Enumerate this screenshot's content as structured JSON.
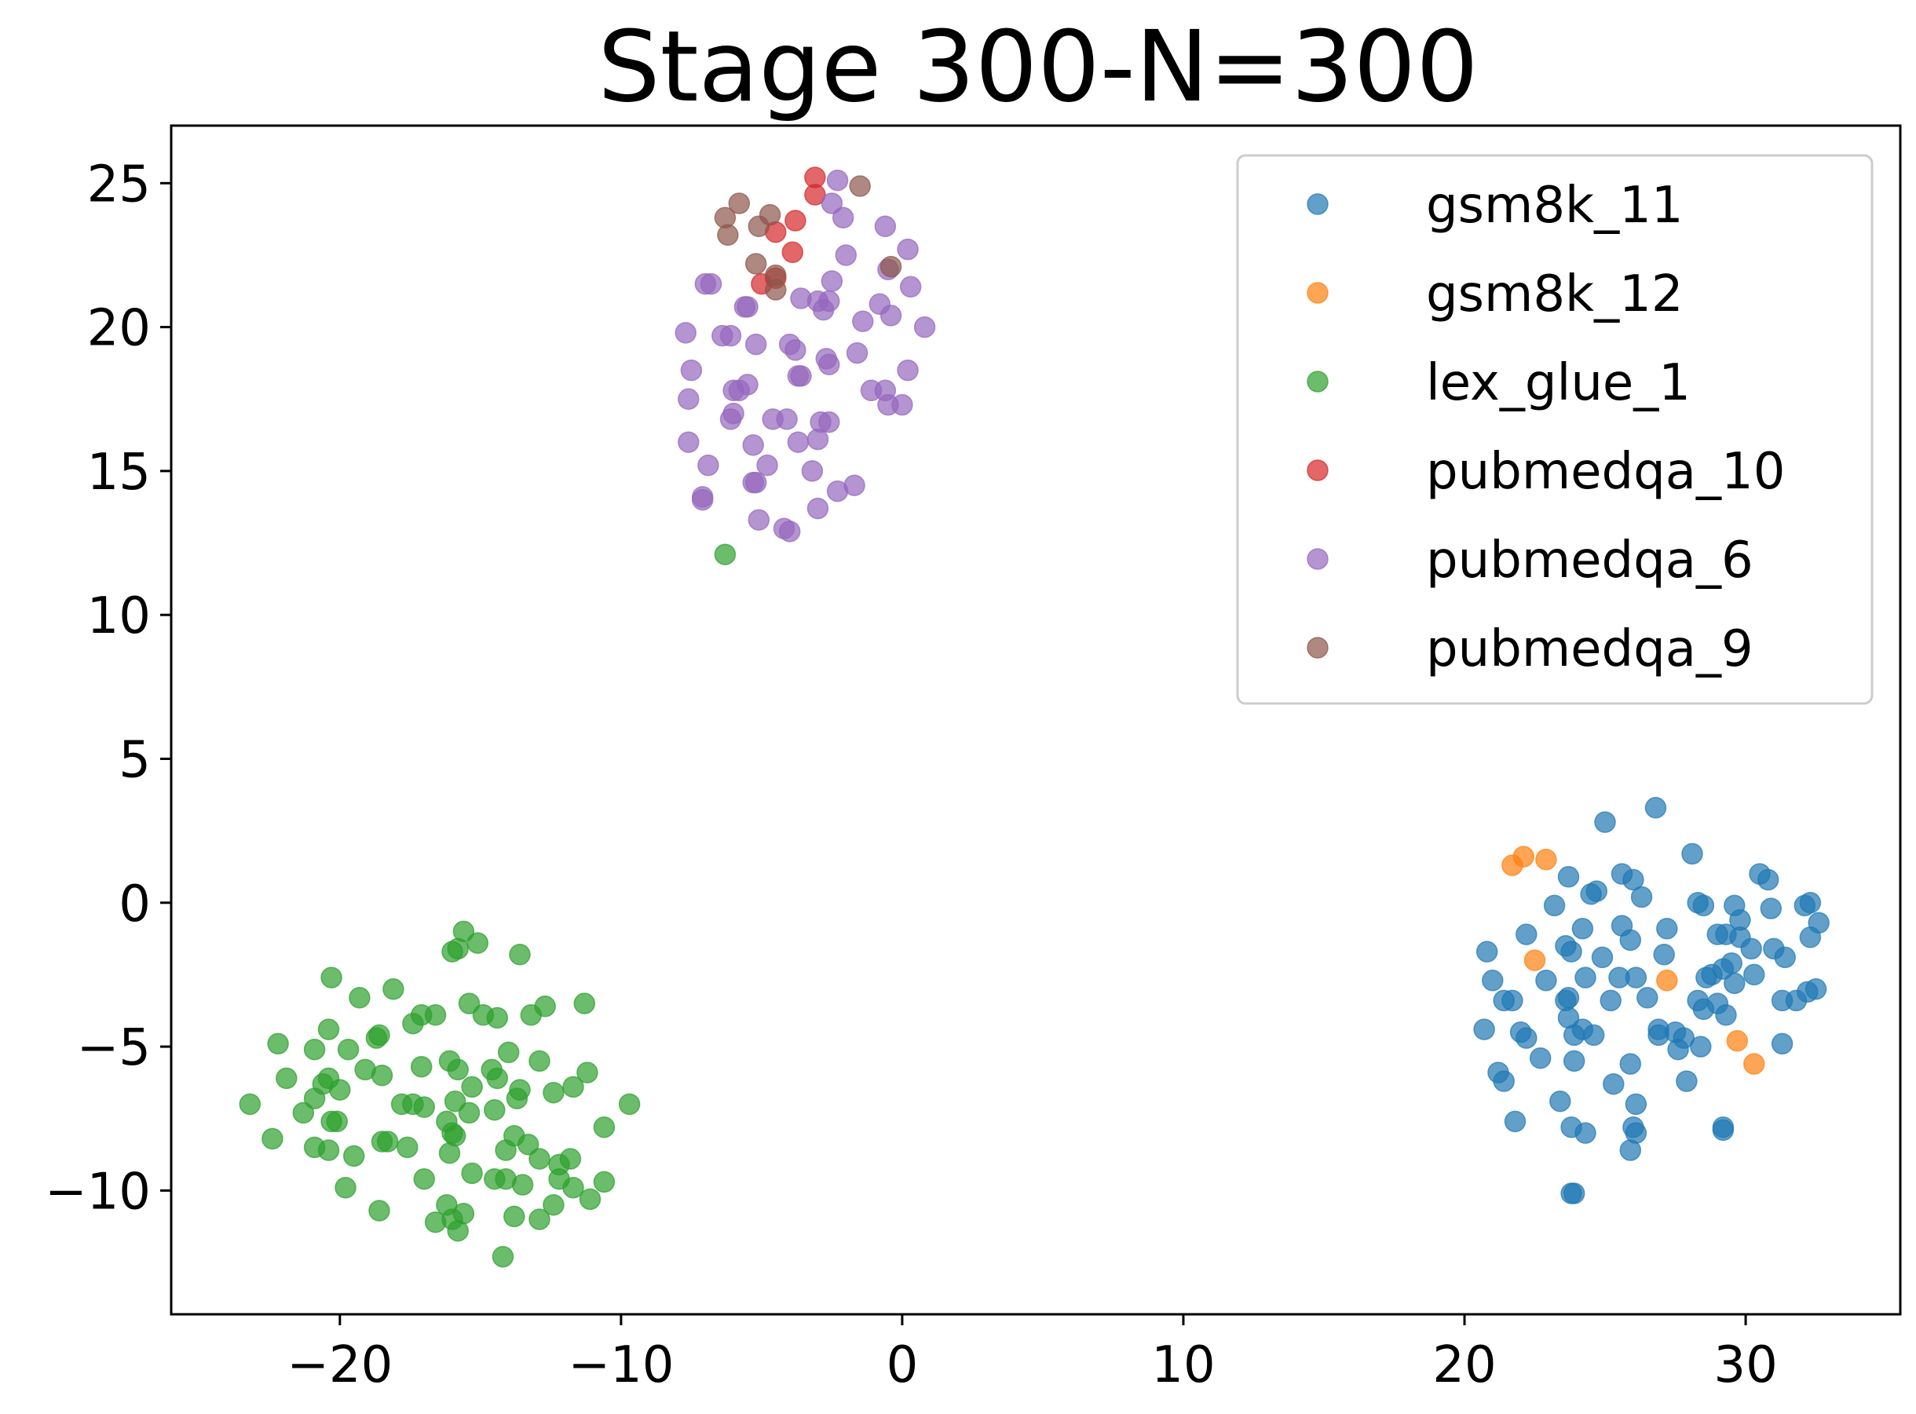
{
  "chart_data": {
    "type": "scatter",
    "title": "Stage 300-N=300",
    "xlabel": "",
    "ylabel": "",
    "xlim": [
      -26,
      35.5
    ],
    "ylim": [
      -14.3,
      27
    ],
    "xticks": [
      -20,
      -10,
      0,
      10,
      20,
      30
    ],
    "xtick_labels": [
      "−20",
      "−10",
      "0",
      "10",
      "20",
      "30"
    ],
    "yticks": [
      -10,
      -5,
      0,
      5,
      10,
      15,
      20,
      25
    ],
    "ytick_labels": [
      "−10",
      "−5",
      "0",
      "5",
      "10",
      "15",
      "20",
      "25"
    ],
    "grid": false,
    "legend_position": "top-right",
    "marker_alpha": 0.7,
    "series": [
      {
        "name": "gsm8k_11",
        "color": "#1f77b4",
        "points": [
          [
            26.8,
            3.3
          ],
          [
            25.0,
            2.8
          ],
          [
            28.1,
            1.7
          ],
          [
            25.6,
            1.0
          ],
          [
            26.0,
            0.8
          ],
          [
            24.5,
            0.3
          ],
          [
            24.7,
            0.4
          ],
          [
            26.3,
            0.2
          ],
          [
            23.7,
            0.9
          ],
          [
            23.2,
            -0.1
          ],
          [
            28.3,
            0.0
          ],
          [
            28.5,
            -0.1
          ],
          [
            30.5,
            1.0
          ],
          [
            30.8,
            0.8
          ],
          [
            29.6,
            -0.1
          ],
          [
            30.9,
            -0.2
          ],
          [
            32.1,
            -0.1
          ],
          [
            32.3,
            0.0
          ],
          [
            32.6,
            -0.7
          ],
          [
            29.8,
            -0.6
          ],
          [
            25.6,
            -0.8
          ],
          [
            27.2,
            -0.9
          ],
          [
            24.2,
            -0.9
          ],
          [
            22.2,
            -1.1
          ],
          [
            23.6,
            -1.5
          ],
          [
            29.0,
            -1.1
          ],
          [
            29.3,
            -1.1
          ],
          [
            29.8,
            -1.2
          ],
          [
            30.2,
            -1.6
          ],
          [
            31.0,
            -1.6
          ],
          [
            31.4,
            -1.9
          ],
          [
            32.3,
            -1.2
          ],
          [
            20.8,
            -1.7
          ],
          [
            27.1,
            -1.8
          ],
          [
            23.8,
            -1.7
          ],
          [
            24.9,
            -1.9
          ],
          [
            25.9,
            -1.3
          ],
          [
            29.5,
            -2.1
          ],
          [
            29.2,
            -2.3
          ],
          [
            28.8,
            -2.5
          ],
          [
            30.3,
            -2.5
          ],
          [
            28.6,
            -2.6
          ],
          [
            26.1,
            -2.6
          ],
          [
            25.5,
            -2.6
          ],
          [
            24.3,
            -2.6
          ],
          [
            22.9,
            -2.7
          ],
          [
            21.0,
            -2.7
          ],
          [
            21.4,
            -3.4
          ],
          [
            21.7,
            -3.4
          ],
          [
            23.6,
            -3.4
          ],
          [
            23.7,
            -3.3
          ],
          [
            25.2,
            -3.4
          ],
          [
            26.5,
            -3.3
          ],
          [
            28.3,
            -3.4
          ],
          [
            28.5,
            -3.7
          ],
          [
            29.0,
            -3.5
          ],
          [
            29.3,
            -3.9
          ],
          [
            29.6,
            -2.8
          ],
          [
            31.3,
            -3.4
          ],
          [
            31.8,
            -3.4
          ],
          [
            32.2,
            -3.1
          ],
          [
            32.5,
            -3.0
          ],
          [
            23.7,
            -4.0
          ],
          [
            24.2,
            -4.4
          ],
          [
            24.6,
            -4.6
          ],
          [
            23.9,
            -4.6
          ],
          [
            22.0,
            -4.5
          ],
          [
            22.2,
            -4.7
          ],
          [
            20.7,
            -4.4
          ],
          [
            26.9,
            -4.4
          ],
          [
            26.9,
            -4.6
          ],
          [
            27.5,
            -4.5
          ],
          [
            27.8,
            -4.7
          ],
          [
            28.4,
            -5.0
          ],
          [
            27.6,
            -5.1
          ],
          [
            31.3,
            -4.9
          ],
          [
            22.7,
            -5.4
          ],
          [
            23.9,
            -5.5
          ],
          [
            25.9,
            -5.6
          ],
          [
            21.2,
            -5.9
          ],
          [
            21.4,
            -6.2
          ],
          [
            25.3,
            -6.3
          ],
          [
            27.9,
            -6.2
          ],
          [
            23.4,
            -6.9
          ],
          [
            26.1,
            -7.0
          ],
          [
            21.8,
            -7.6
          ],
          [
            23.8,
            -7.8
          ],
          [
            24.3,
            -8.0
          ],
          [
            26.0,
            -7.8
          ],
          [
            26.1,
            -8.0
          ],
          [
            29.2,
            -7.8
          ],
          [
            29.2,
            -7.9
          ],
          [
            25.9,
            -8.6
          ],
          [
            23.8,
            -10.1
          ],
          [
            23.9,
            -10.1
          ]
        ]
      },
      {
        "name": "gsm8k_12",
        "color": "#ff7f0e",
        "points": [
          [
            21.7,
            1.3
          ],
          [
            22.1,
            1.6
          ],
          [
            22.9,
            1.5
          ],
          [
            22.5,
            -2.0
          ],
          [
            27.2,
            -2.7
          ],
          [
            29.7,
            -4.8
          ],
          [
            30.3,
            -5.6
          ]
        ]
      },
      {
        "name": "lex_glue_1",
        "color": "#2ca02c",
        "points": [
          [
            -6.3,
            12.1
          ],
          [
            -15.6,
            -1.0
          ],
          [
            -15.1,
            -1.4
          ],
          [
            -16.0,
            -1.7
          ],
          [
            -15.8,
            -1.6
          ],
          [
            -13.6,
            -1.8
          ],
          [
            -20.3,
            -2.6
          ],
          [
            -18.1,
            -3.0
          ],
          [
            -19.3,
            -3.3
          ],
          [
            -15.4,
            -3.5
          ],
          [
            -14.9,
            -3.9
          ],
          [
            -14.4,
            -4.0
          ],
          [
            -16.6,
            -3.9
          ],
          [
            -17.1,
            -3.9
          ],
          [
            -17.4,
            -4.2
          ],
          [
            -13.2,
            -3.9
          ],
          [
            -12.7,
            -3.6
          ],
          [
            -11.3,
            -3.5
          ],
          [
            -20.4,
            -4.4
          ],
          [
            -22.2,
            -4.9
          ],
          [
            -20.9,
            -5.1
          ],
          [
            -19.7,
            -5.1
          ],
          [
            -18.6,
            -4.6
          ],
          [
            -18.7,
            -4.7
          ],
          [
            -14.0,
            -5.2
          ],
          [
            -16.1,
            -5.5
          ],
          [
            -15.8,
            -5.8
          ],
          [
            -12.9,
            -5.5
          ],
          [
            -17.1,
            -5.7
          ],
          [
            -19.1,
            -5.8
          ],
          [
            -18.5,
            -6.0
          ],
          [
            -20.4,
            -6.1
          ],
          [
            -20.6,
            -6.3
          ],
          [
            -20.0,
            -6.5
          ],
          [
            -21.9,
            -6.1
          ],
          [
            -15.3,
            -6.4
          ],
          [
            -14.6,
            -5.8
          ],
          [
            -14.4,
            -6.1
          ],
          [
            -13.6,
            -6.5
          ],
          [
            -13.7,
            -6.8
          ],
          [
            -12.4,
            -6.6
          ],
          [
            -11.7,
            -6.4
          ],
          [
            -11.2,
            -5.9
          ],
          [
            -23.2,
            -7.0
          ],
          [
            -21.3,
            -7.3
          ],
          [
            -20.9,
            -6.8
          ],
          [
            -17.8,
            -7.0
          ],
          [
            -17.4,
            -7.0
          ],
          [
            -17.0,
            -7.1
          ],
          [
            -15.9,
            -6.9
          ],
          [
            -15.4,
            -7.3
          ],
          [
            -14.5,
            -7.2
          ],
          [
            -20.3,
            -7.6
          ],
          [
            -20.1,
            -7.6
          ],
          [
            -16.2,
            -7.6
          ],
          [
            -16.0,
            -8.0
          ],
          [
            -15.9,
            -8.1
          ],
          [
            -13.8,
            -8.1
          ],
          [
            -13.3,
            -8.4
          ],
          [
            -14.1,
            -8.6
          ],
          [
            -12.9,
            -8.9
          ],
          [
            -12.2,
            -9.1
          ],
          [
            -11.8,
            -8.9
          ],
          [
            -10.6,
            -7.8
          ],
          [
            -9.7,
            -7.0
          ],
          [
            -22.4,
            -8.2
          ],
          [
            -20.9,
            -8.5
          ],
          [
            -20.4,
            -8.6
          ],
          [
            -19.5,
            -8.8
          ],
          [
            -18.5,
            -8.3
          ],
          [
            -18.3,
            -8.3
          ],
          [
            -17.6,
            -8.5
          ],
          [
            -16.1,
            -8.7
          ],
          [
            -17.0,
            -9.6
          ],
          [
            -15.3,
            -9.4
          ],
          [
            -14.5,
            -9.6
          ],
          [
            -14.1,
            -9.6
          ],
          [
            -13.5,
            -9.8
          ],
          [
            -12.2,
            -9.6
          ],
          [
            -11.7,
            -9.9
          ],
          [
            -10.6,
            -9.7
          ],
          [
            -19.8,
            -9.9
          ],
          [
            -11.1,
            -10.3
          ],
          [
            -12.4,
            -10.5
          ],
          [
            -16.2,
            -10.5
          ],
          [
            -15.6,
            -10.8
          ],
          [
            -16.0,
            -11.0
          ],
          [
            -13.8,
            -10.9
          ],
          [
            -12.9,
            -11.0
          ],
          [
            -18.6,
            -10.7
          ],
          [
            -16.6,
            -11.1
          ],
          [
            -15.8,
            -11.4
          ],
          [
            -14.2,
            -12.3
          ]
        ]
      },
      {
        "name": "pubmedqa_10",
        "color": "#d62728",
        "points": [
          [
            -3.1,
            25.2
          ],
          [
            -3.1,
            24.6
          ],
          [
            -3.8,
            23.7
          ],
          [
            -4.5,
            23.3
          ],
          [
            -3.9,
            22.6
          ],
          [
            -5.0,
            21.5
          ],
          [
            -4.5,
            21.7
          ]
        ]
      },
      {
        "name": "pubmedqa_6",
        "color": "#9467bd",
        "points": [
          [
            -2.3,
            25.1
          ],
          [
            -2.5,
            24.3
          ],
          [
            -2.1,
            23.8
          ],
          [
            -0.6,
            23.5
          ],
          [
            -2.0,
            22.5
          ],
          [
            0.2,
            22.7
          ],
          [
            -0.5,
            22.0
          ],
          [
            -7.0,
            21.5
          ],
          [
            -6.8,
            21.5
          ],
          [
            -5.6,
            20.7
          ],
          [
            -3.6,
            21.0
          ],
          [
            -3.0,
            20.9
          ],
          [
            -2.6,
            20.9
          ],
          [
            -2.5,
            21.6
          ],
          [
            -0.8,
            20.8
          ],
          [
            0.3,
            21.4
          ],
          [
            -0.4,
            20.4
          ],
          [
            -2.8,
            20.6
          ],
          [
            -1.4,
            20.2
          ],
          [
            0.8,
            20.0
          ],
          [
            -7.7,
            19.8
          ],
          [
            -6.4,
            19.7
          ],
          [
            -6.1,
            19.7
          ],
          [
            -5.2,
            19.4
          ],
          [
            -4.0,
            19.4
          ],
          [
            -3.8,
            19.2
          ],
          [
            -2.7,
            18.9
          ],
          [
            -2.6,
            18.7
          ],
          [
            -1.6,
            19.1
          ],
          [
            0.2,
            18.5
          ],
          [
            -7.5,
            18.5
          ],
          [
            -7.6,
            17.5
          ],
          [
            -5.8,
            17.8
          ],
          [
            -5.5,
            18.0
          ],
          [
            -6.0,
            17.8
          ],
          [
            -3.7,
            18.3
          ],
          [
            -3.6,
            18.3
          ],
          [
            -1.1,
            17.8
          ],
          [
            -0.6,
            17.8
          ],
          [
            -0.5,
            17.3
          ],
          [
            0.0,
            17.3
          ],
          [
            -6.1,
            16.8
          ],
          [
            -6.0,
            17.0
          ],
          [
            -4.6,
            16.8
          ],
          [
            -4.1,
            16.8
          ],
          [
            -2.9,
            16.7
          ],
          [
            -2.6,
            16.7
          ],
          [
            -7.6,
            16.0
          ],
          [
            -5.3,
            15.9
          ],
          [
            -3.7,
            16.0
          ],
          [
            -3.0,
            16.1
          ],
          [
            -6.9,
            15.2
          ],
          [
            -4.8,
            15.2
          ],
          [
            -3.2,
            15.0
          ],
          [
            -5.3,
            14.6
          ],
          [
            -5.2,
            14.6
          ],
          [
            -1.7,
            14.5
          ],
          [
            -2.3,
            14.3
          ],
          [
            -7.1,
            14.1
          ],
          [
            -7.1,
            14.0
          ],
          [
            -3.0,
            13.7
          ],
          [
            -5.1,
            13.3
          ],
          [
            -4.2,
            13.0
          ],
          [
            -4.0,
            12.9
          ],
          [
            -5.5,
            20.7
          ]
        ]
      },
      {
        "name": "pubmedqa_9",
        "color": "#8c564b",
        "points": [
          [
            -1.5,
            24.9
          ],
          [
            -5.8,
            24.3
          ],
          [
            -6.3,
            23.8
          ],
          [
            -6.2,
            23.2
          ],
          [
            -5.1,
            23.5
          ],
          [
            -4.7,
            23.9
          ],
          [
            -5.2,
            22.2
          ],
          [
            -4.5,
            21.8
          ],
          [
            -4.5,
            21.3
          ],
          [
            -0.4,
            22.1
          ]
        ]
      }
    ]
  }
}
